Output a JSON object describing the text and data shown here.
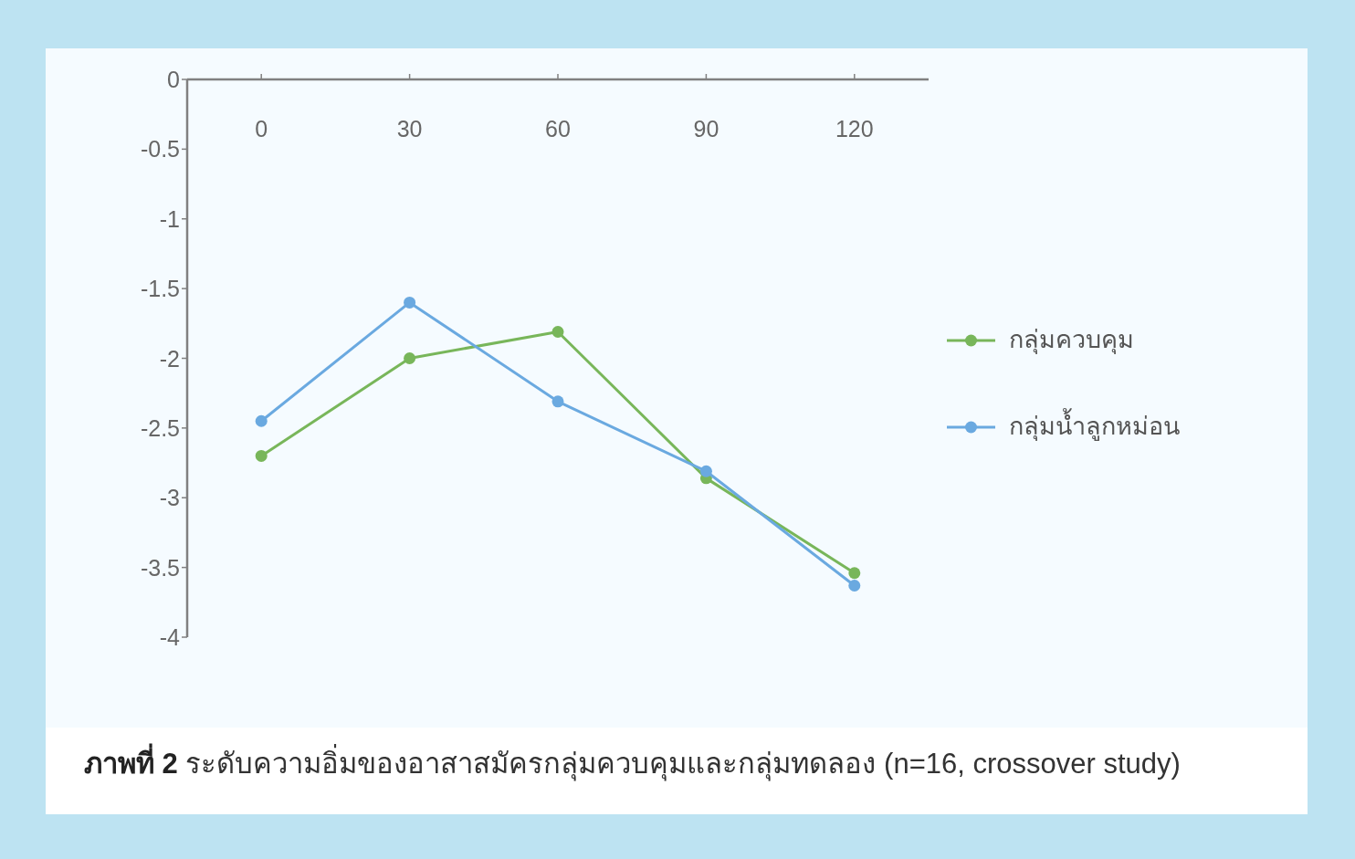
{
  "chart_data": {
    "type": "line",
    "title": "ภาพที่ 2",
    "subtitle": "ระดับความอิ่มของอาสาสมัครกลุ่มควบคุมและกลุ่มทดลอง (n=16, crossover study)",
    "categories": [
      "0",
      "30",
      "60",
      "90",
      "120"
    ],
    "series": [
      {
        "name": "กลุ่มควบคุม",
        "color": "#78b65a",
        "values": [
          -2.7,
          -2.0,
          -1.81,
          -2.86,
          -3.54
        ]
      },
      {
        "name": "กลุ่มน้ำลูกหม่อน",
        "color": "#6aa9e0",
        "values": [
          -2.45,
          -1.6,
          -2.31,
          -2.81,
          -3.63
        ]
      }
    ],
    "ylim": [
      -4,
      0
    ],
    "yticks": [
      0,
      -0.5,
      -1,
      -1.5,
      -2,
      -2.5,
      -3,
      -3.5,
      -4
    ],
    "legend": "right",
    "marker": "circle",
    "line_style": "solid"
  }
}
